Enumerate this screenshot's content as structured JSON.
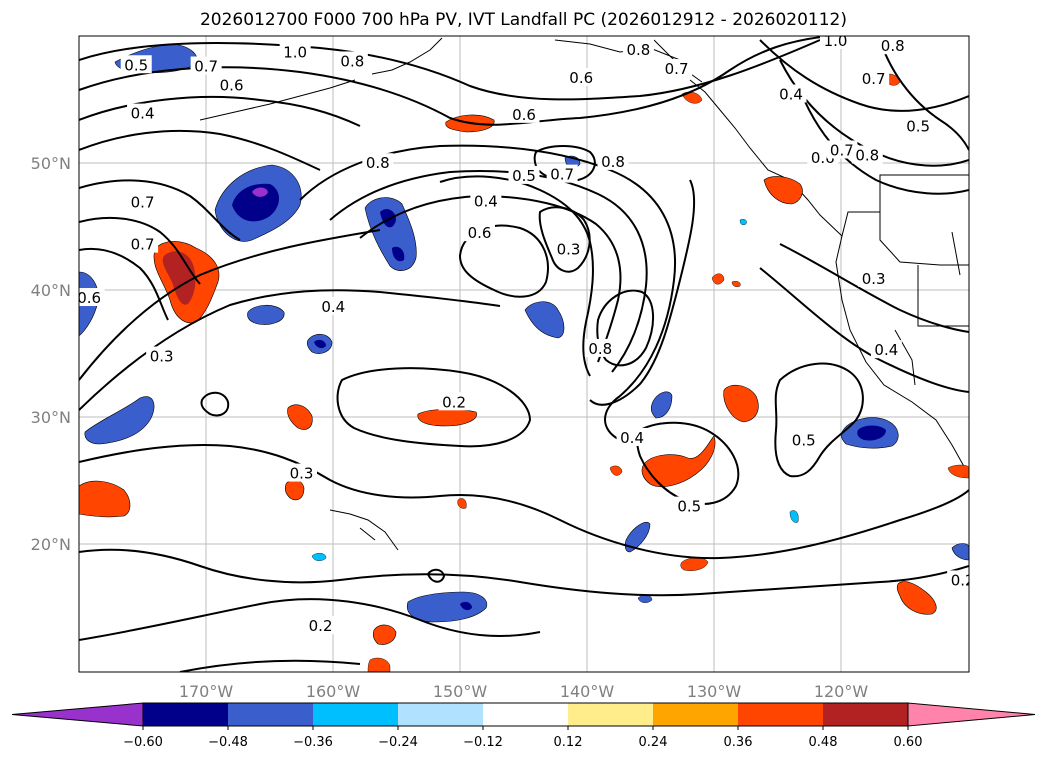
{
  "title": "2026012700 F000 700 hPa PV, IVT Landfall PC (2026012912 - 2026020112)",
  "map": {
    "lon_range": [
      -180,
      -110
    ],
    "lat_range": [
      10,
      60
    ],
    "lat_labels": [
      "20°N",
      "30°N",
      "40°N",
      "50°N"
    ],
    "lon_labels": [
      "170°W",
      "160°W",
      "150°W",
      "140°W",
      "130°W",
      "120°W"
    ],
    "contour_labels": [
      {
        "text": "0.5",
        "lon": -175.5,
        "lat": 57.7
      },
      {
        "text": "0.7",
        "lon": -170,
        "lat": 57.6
      },
      {
        "text": "0.6",
        "lon": -168,
        "lat": 56.1
      },
      {
        "text": "1.0",
        "lon": -163,
        "lat": 58.7
      },
      {
        "text": "0.8",
        "lon": -158.5,
        "lat": 58.0
      },
      {
        "text": "0.4",
        "lon": -175,
        "lat": 53.9
      },
      {
        "text": "0.6",
        "lon": -145,
        "lat": 53.8
      },
      {
        "text": "0.6",
        "lon": -140.5,
        "lat": 56.7
      },
      {
        "text": "0.7",
        "lon": -133,
        "lat": 57.4
      },
      {
        "text": "0.8",
        "lon": -136,
        "lat": 58.9
      },
      {
        "text": "1.0",
        "lon": -120.5,
        "lat": 59.6
      },
      {
        "text": "0.4",
        "lon": -124,
        "lat": 55.4
      },
      {
        "text": "0.7",
        "lon": -117.5,
        "lat": 56.6
      },
      {
        "text": "0.5",
        "lon": -114,
        "lat": 52.9
      },
      {
        "text": "0.8",
        "lon": -116,
        "lat": 59.2
      },
      {
        "text": "0.6",
        "lon": -121.5,
        "lat": 50.4
      },
      {
        "text": "0.7",
        "lon": -120,
        "lat": 51.0
      },
      {
        "text": "0.8",
        "lon": -118,
        "lat": 50.6
      },
      {
        "text": "0.8",
        "lon": -156.5,
        "lat": 50.0
      },
      {
        "text": "0.5",
        "lon": -145,
        "lat": 49.0
      },
      {
        "text": "0.7",
        "lon": -142,
        "lat": 49.1
      },
      {
        "text": "0.8",
        "lon": -138,
        "lat": 50.1
      },
      {
        "text": "0.4",
        "lon": -148,
        "lat": 47.0
      },
      {
        "text": "0.6",
        "lon": -148.5,
        "lat": 44.5
      },
      {
        "text": "0.3",
        "lon": -141.5,
        "lat": 43.2
      },
      {
        "text": "0.7",
        "lon": -175,
        "lat": 46.9
      },
      {
        "text": "0.7",
        "lon": -175,
        "lat": 43.6
      },
      {
        "text": "0.4",
        "lon": -160,
        "lat": 38.7
      },
      {
        "text": "0.3",
        "lon": -173.5,
        "lat": 34.8
      },
      {
        "text": "0.8",
        "lon": -139,
        "lat": 35.4
      },
      {
        "text": "0.3",
        "lon": -117.5,
        "lat": 40.9
      },
      {
        "text": "0.4",
        "lon": -116.5,
        "lat": 35.3
      },
      {
        "text": "0.2",
        "lon": -150.5,
        "lat": 31.2
      },
      {
        "text": "0.4",
        "lon": -136.5,
        "lat": 28.4
      },
      {
        "text": "0.5",
        "lon": -123,
        "lat": 28.2
      },
      {
        "text": "0.3",
        "lon": -162.5,
        "lat": 25.6
      },
      {
        "text": "0.5",
        "lon": -132,
        "lat": 23.0
      },
      {
        "text": "0.2",
        "lon": -161,
        "lat": 13.6
      },
      {
        "text": "0.2",
        "lon": -110.5,
        "lat": 17.2
      },
      {
        "text": "0.6",
        "lon": -179.2,
        "lat": 39.4
      }
    ]
  },
  "colorbar": {
    "ticks": [
      "−0.60",
      "−0.48",
      "−0.36",
      "−0.24",
      "−0.12",
      "0.12",
      "0.24",
      "0.36",
      "0.48",
      "0.60"
    ],
    "colors": [
      "#9932cc",
      "#00008b",
      "#3a5fcd",
      "#00bfff",
      "#b0e2ff",
      "#ffffff",
      "#ffec8b",
      "#ffa500",
      "#ff4500",
      "#b22222",
      "#ff83aa"
    ]
  }
}
